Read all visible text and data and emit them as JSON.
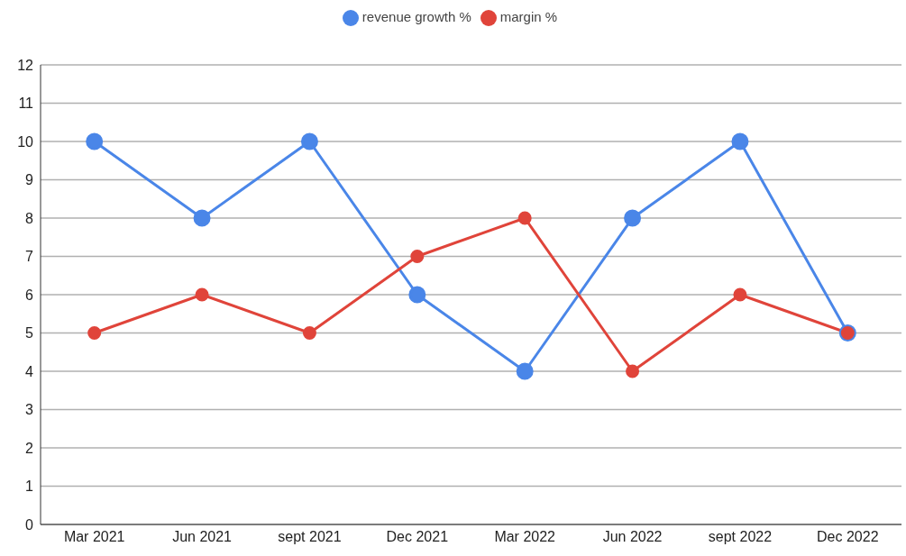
{
  "chart_data": {
    "type": "line",
    "categories": [
      "Mar 2021",
      "Jun 2021",
      "sept 2021",
      "Dec 2021",
      "Mar 2022",
      "Jun 2022",
      "sept 2022",
      "Dec 2022"
    ],
    "series": [
      {
        "name": "revenue growth %",
        "color": "#4a86e8",
        "values": [
          10,
          8,
          10,
          6,
          4,
          8,
          10,
          5
        ]
      },
      {
        "name": "margin %",
        "color": "#e0443a",
        "values": [
          5,
          6,
          5,
          7,
          8,
          4,
          6,
          5
        ]
      }
    ],
    "ylim": [
      0,
      12
    ],
    "yticks": [
      0,
      1,
      2,
      3,
      4,
      5,
      6,
      7,
      8,
      9,
      10,
      11,
      12
    ],
    "grid": "y",
    "legend": "top",
    "marker": "circle",
    "line_style": "solid"
  }
}
